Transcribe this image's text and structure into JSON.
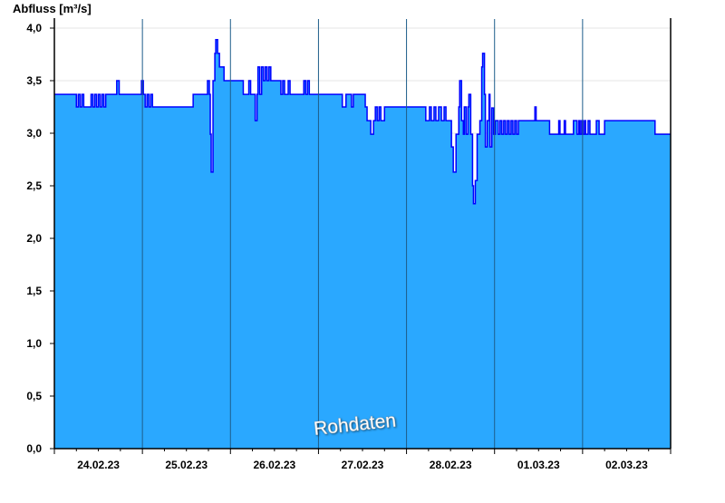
{
  "chart_data": {
    "type": "area",
    "ylabel": "Abfluss [m³/s]",
    "watermark": "Rohdaten",
    "ylim": [
      0,
      4.0
    ],
    "yticks": [
      "0,0",
      "0,5",
      "1,0",
      "1,5",
      "2,0",
      "2,5",
      "3,0",
      "3,5",
      "4,0"
    ],
    "xlim": [
      "24.02.23 00:00",
      "03.03.23 00:00"
    ],
    "xticks": [
      "24.02.23",
      "25.02.23",
      "26.02.23",
      "27.02.23",
      "28.02.23",
      "01.03.23",
      "02.03.23"
    ],
    "grid": true,
    "colors": {
      "fill": "#2aa8ff",
      "line": "#0000ff",
      "day_separator": "#1d5d8a",
      "grid": "#e6e6e6"
    },
    "step": true,
    "series": [
      {
        "points": [
          [
            "24.02.23 00:00",
            3.37
          ],
          [
            "24.02.23 06:00",
            3.25
          ],
          [
            "24.02.23 06:30",
            3.37
          ],
          [
            "24.02.23 07:00",
            3.25
          ],
          [
            "24.02.23 07:30",
            3.37
          ],
          [
            "24.02.23 08:00",
            3.25
          ],
          [
            "24.02.23 10:00",
            3.37
          ],
          [
            "24.02.23 10:30",
            3.25
          ],
          [
            "24.02.23 11:00",
            3.37
          ],
          [
            "24.02.23 11:30",
            3.25
          ],
          [
            "24.02.23 12:00",
            3.37
          ],
          [
            "24.02.23 12:30",
            3.25
          ],
          [
            "24.02.23 13:00",
            3.37
          ],
          [
            "24.02.23 13:30",
            3.25
          ],
          [
            "24.02.23 14:00",
            3.37
          ],
          [
            "24.02.23 17:00",
            3.5
          ],
          [
            "24.02.23 17:40",
            3.37
          ],
          [
            "24.02.23 23:45",
            3.5
          ],
          [
            "25.02.23 00:15",
            3.37
          ],
          [
            "25.02.23 00:45",
            3.25
          ],
          [
            "25.02.23 01:15",
            3.37
          ],
          [
            "25.02.23 01:45",
            3.25
          ],
          [
            "25.02.23 02:15",
            3.37
          ],
          [
            "25.02.23 02:45",
            3.25
          ],
          [
            "25.02.23 13:50",
            3.37
          ],
          [
            "25.02.23 17:45",
            3.5
          ],
          [
            "25.02.23 18:15",
            3.37
          ],
          [
            "25.02.23 18:30",
            2.99
          ],
          [
            "25.02.23 18:45",
            2.63
          ],
          [
            "25.02.23 19:15",
            3.5
          ],
          [
            "25.02.23 19:45",
            3.76
          ],
          [
            "25.02.23 20:00",
            3.89
          ],
          [
            "25.02.23 20:30",
            3.76
          ],
          [
            "25.02.23 21:00",
            3.63
          ],
          [
            "25.02.23 22:15",
            3.5
          ],
          [
            "26.02.23 03:30",
            3.37
          ],
          [
            "26.02.23 05:00",
            3.5
          ],
          [
            "26.02.23 05:30",
            3.37
          ],
          [
            "26.02.23 06:45",
            3.12
          ],
          [
            "26.02.23 07:15",
            3.37
          ],
          [
            "26.02.23 07:30",
            3.63
          ],
          [
            "26.02.23 08:00",
            3.37
          ],
          [
            "26.02.23 08:30",
            3.63
          ],
          [
            "26.02.23 09:00",
            3.5
          ],
          [
            "26.02.23 09:30",
            3.63
          ],
          [
            "26.02.23 10:00",
            3.5
          ],
          [
            "26.02.23 10:30",
            3.63
          ],
          [
            "26.02.23 11:00",
            3.5
          ],
          [
            "26.02.23 13:45",
            3.37
          ],
          [
            "26.02.23 14:15",
            3.5
          ],
          [
            "26.02.23 14:45",
            3.37
          ],
          [
            "26.02.23 15:45",
            3.5
          ],
          [
            "26.02.23 16:15",
            3.37
          ],
          [
            "26.02.23 20:00",
            3.5
          ],
          [
            "26.02.23 20:30",
            3.37
          ],
          [
            "26.02.23 21:00",
            3.5
          ],
          [
            "26.02.23 21:30",
            3.37
          ],
          [
            "27.02.23 06:30",
            3.25
          ],
          [
            "27.02.23 07:30",
            3.37
          ],
          [
            "27.02.23 09:00",
            3.25
          ],
          [
            "27.02.23 09:30",
            3.37
          ],
          [
            "27.02.23 12:45",
            3.25
          ],
          [
            "27.02.23 13:15",
            3.12
          ],
          [
            "27.02.23 14:15",
            2.99
          ],
          [
            "27.02.23 15:00",
            3.12
          ],
          [
            "27.02.23 15:30",
            3.25
          ],
          [
            "27.02.23 16:00",
            3.12
          ],
          [
            "27.02.23 16:30",
            3.25
          ],
          [
            "27.02.23 17:00",
            3.12
          ],
          [
            "27.02.23 18:00",
            3.25
          ],
          [
            "28.02.23 05:15",
            3.12
          ],
          [
            "28.02.23 06:15",
            3.25
          ],
          [
            "28.02.23 06:45",
            3.12
          ],
          [
            "28.02.23 07:30",
            3.25
          ],
          [
            "28.02.23 08:00",
            3.12
          ],
          [
            "28.02.23 08:45",
            3.25
          ],
          [
            "28.02.23 09:30",
            3.12
          ],
          [
            "28.02.23 10:15",
            3.25
          ],
          [
            "28.02.23 10:45",
            3.12
          ],
          [
            "28.02.23 12:15",
            2.87
          ],
          [
            "28.02.23 12:45",
            2.63
          ],
          [
            "28.02.23 13:30",
            2.99
          ],
          [
            "28.02.23 14:15",
            3.25
          ],
          [
            "28.02.23 14:30",
            3.5
          ],
          [
            "28.02.23 15:00",
            3.12
          ],
          [
            "28.02.23 15:30",
            2.99
          ],
          [
            "28.02.23 15:45",
            3.25
          ],
          [
            "28.02.23 16:15",
            2.99
          ],
          [
            "28.02.23 16:45",
            3.25
          ],
          [
            "28.02.23 17:00",
            3.37
          ],
          [
            "28.02.23 17:30",
            2.99
          ],
          [
            "28.02.23 18:00",
            2.5
          ],
          [
            "28.02.23 18:15",
            2.33
          ],
          [
            "28.02.23 18:45",
            2.55
          ],
          [
            "28.02.23 19:15",
            2.99
          ],
          [
            "28.02.23 20:00",
            3.12
          ],
          [
            "28.02.23 20:30",
            3.63
          ],
          [
            "28.02.23 20:45",
            3.76
          ],
          [
            "28.02.23 21:15",
            3.37
          ],
          [
            "28.02.23 21:30",
            2.87
          ],
          [
            "28.02.23 22:00",
            3.12
          ],
          [
            "28.02.23 22:30",
            3.37
          ],
          [
            "28.02.23 22:45",
            2.87
          ],
          [
            "28.02.23 23:15",
            3.24
          ],
          [
            "28.02.23 23:45",
            2.99
          ],
          [
            "01.03.23 00:15",
            3.12
          ],
          [
            "01.03.23 01:00",
            2.99
          ],
          [
            "01.03.23 01:30",
            3.12
          ],
          [
            "01.03.23 02:00",
            2.99
          ],
          [
            "01.03.23 02:30",
            3.12
          ],
          [
            "01.03.23 03:00",
            2.99
          ],
          [
            "01.03.23 03:30",
            3.12
          ],
          [
            "01.03.23 04:00",
            2.99
          ],
          [
            "01.03.23 04:30",
            3.12
          ],
          [
            "01.03.23 05:00",
            2.99
          ],
          [
            "01.03.23 05:30",
            3.12
          ],
          [
            "01.03.23 06:00",
            2.99
          ],
          [
            "01.03.23 06:30",
            3.12
          ],
          [
            "01.03.23 11:00",
            3.25
          ],
          [
            "01.03.23 11:20",
            3.12
          ],
          [
            "01.03.23 15:00",
            2.99
          ],
          [
            "01.03.23 17:30",
            3.12
          ],
          [
            "01.03.23 17:50",
            2.99
          ],
          [
            "01.03.23 19:00",
            3.12
          ],
          [
            "01.03.23 19:20",
            2.99
          ],
          [
            "01.03.23 21:30",
            3.12
          ],
          [
            "01.03.23 22:30",
            2.99
          ],
          [
            "01.03.23 23:00",
            3.12
          ],
          [
            "01.03.23 23:20",
            2.99
          ],
          [
            "01.03.23 23:45",
            3.12
          ],
          [
            "02.03.23 00:05",
            2.99
          ],
          [
            "02.03.23 00:30",
            3.12
          ],
          [
            "02.03.23 00:50",
            2.99
          ],
          [
            "02.03.23 01:30",
            3.12
          ],
          [
            "02.03.23 02:00",
            2.99
          ],
          [
            "02.03.23 03:45",
            3.12
          ],
          [
            "02.03.23 04:30",
            2.99
          ],
          [
            "02.03.23 06:00",
            3.12
          ],
          [
            "02.03.23 19:45",
            2.99
          ],
          [
            "03.03.23 00:00",
            2.99
          ]
        ]
      }
    ]
  }
}
